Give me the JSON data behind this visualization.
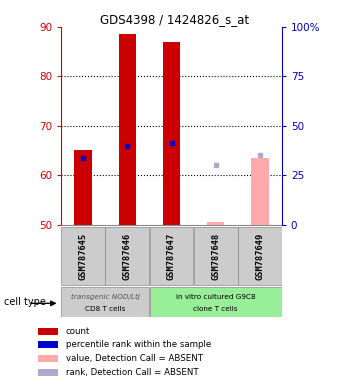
{
  "title": "GDS4398 / 1424826_s_at",
  "samples": [
    "GSM787645",
    "GSM787646",
    "GSM787647",
    "GSM787648",
    "GSM787649"
  ],
  "ylim": [
    50,
    90
  ],
  "yticks": [
    50,
    60,
    70,
    80,
    90
  ],
  "right_ylabels": [
    "0",
    "25",
    "50",
    "75",
    "100%"
  ],
  "bar_width": 0.4,
  "count_values": [
    65.0,
    88.5,
    87.0,
    null,
    null
  ],
  "rank_values": [
    63.5,
    66.0,
    66.5,
    null,
    null
  ],
  "absent_count_values": [
    null,
    null,
    null,
    50.5,
    63.5
  ],
  "absent_rank_values": [
    null,
    null,
    null,
    62.0,
    64.0
  ],
  "color_count": "#cc0000",
  "color_rank": "#0000cc",
  "color_absent_count": "#ffaaaa",
  "color_absent_rank": "#aaaacc",
  "group1_label1": "transgenic NOD/LtJ",
  "group1_label2": "CD8 T cells",
  "group2_label1": "in vitro cultured G9C8",
  "group2_label2": "clone T cells",
  "group1_color": "#cccccc",
  "group2_color": "#99ee99",
  "cell_type_label": "cell type",
  "legend_items": [
    "count",
    "percentile rank within the sample",
    "value, Detection Call = ABSENT",
    "rank, Detection Call = ABSENT"
  ],
  "legend_colors": [
    "#cc0000",
    "#0000cc",
    "#ffaaaa",
    "#aaaacc"
  ],
  "tick_color_left": "#cc0000",
  "tick_color_right": "#0000bb"
}
